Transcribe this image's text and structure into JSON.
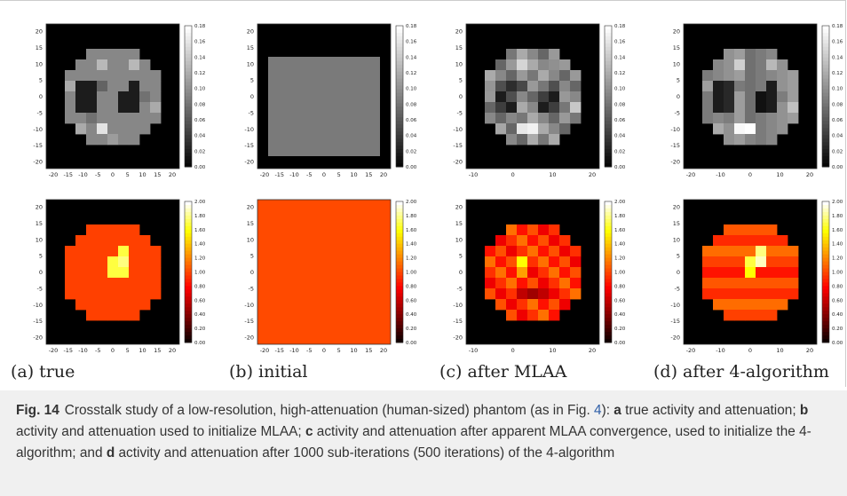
{
  "panels": [
    {
      "label_tag": "(a)",
      "label_text": "true",
      "axis_ticks": [
        "-20",
        "-15",
        "-10",
        "-5",
        "0",
        "5",
        "10",
        "15",
        "20"
      ],
      "mu_grid": "............................................;.........................;...........33333.....;..........3333333332.........;........333344.443333.........;......333111333110333......;......33311133211303......;......33300333300333......;......33333363333333......;.......333353333333.......;..........333333...........",
      "lambda_grid": ""
    },
    {
      "label_tag": "(b)",
      "label_text": "initial",
      "axis_ticks": [
        "-20",
        "-15",
        "-10",
        "-5",
        "0",
        "5",
        "10",
        "15",
        "20"
      ]
    },
    {
      "label_tag": "(c)",
      "label_text": "after MLAA",
      "axis_ticks": [
        "-10",
        "0",
        "10",
        "20"
      ],
      "axis_ticks_top": [
        "-10",
        "0",
        "10",
        "20"
      ]
    },
    {
      "label_tag": "(d)",
      "label_text": "after 4-algorithm",
      "axis_ticks": [
        "-20",
        "-10",
        "0",
        "10",
        "20"
      ]
    }
  ],
  "y_ticks": [
    "20",
    "15",
    "10",
    "5",
    "0",
    "-5",
    "-10",
    "-15",
    "-20"
  ],
  "colorbar_top": {
    "ticks": [
      "0.18",
      "0.16",
      "0.14",
      "0.12",
      "0.10",
      "0.08",
      "0.06",
      "0.04",
      "0.02",
      "0.00"
    ],
    "max": 0.18
  },
  "colorbar_bottom": {
    "ticks": [
      "2.00",
      "1.80",
      "1.60",
      "1.40",
      "1.20",
      "1.00",
      "0.80",
      "0.60",
      "0.40",
      "0.20",
      "0.00"
    ],
    "max": 2.0
  },
  "caption": {
    "fig_label": "Fig. 14",
    "part1": "Crosstalk study of a low-resolution, high-attenuation (human-sized) phantom (as in Fig. ",
    "ref": "4",
    "part2": "): ",
    "a": "a",
    "a_text": " true activity and attenuation; ",
    "b": "b",
    "b_text": " activity and attenuation used to initialize MLAA; ",
    "c": "c",
    "c_text": " activity and attenuation after apparent MLAA convergence, used to initialize the 4-algorithm; and ",
    "d": "d",
    "d_text": " activity and attenuation after 1000 sub-iterations (500 iterations) of the 4-algorithm"
  }
}
